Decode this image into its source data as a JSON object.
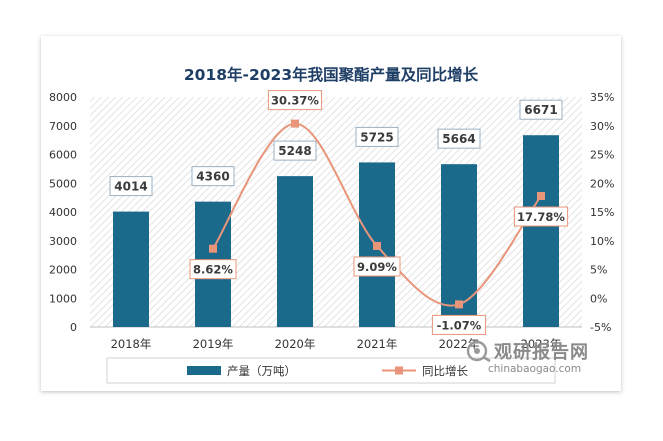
{
  "chart_data": {
    "type": "bar",
    "title": "2018年-2023年我国聚酯产量及同比增长",
    "categories": [
      "2018年",
      "2019年",
      "2020年",
      "2021年",
      "2022年",
      "2023年"
    ],
    "series": [
      {
        "name": "产量（万吨）",
        "type": "bar",
        "axis": "left",
        "values": [
          4014,
          4360,
          5248,
          5725,
          5664,
          6671
        ],
        "labels": [
          "4014",
          "4360",
          "5248",
          "5725",
          "5664",
          "6671"
        ],
        "color": "#1b6a8c"
      },
      {
        "name": "同比增长",
        "type": "line",
        "axis": "right",
        "values": [
          null,
          8.62,
          30.37,
          9.09,
          -1.07,
          17.78
        ],
        "labels": [
          "",
          "8.62%",
          "30.37%",
          "9.09%",
          "-1.07%",
          "17.78%"
        ],
        "color": "#e8957a"
      }
    ],
    "y_left": {
      "min": 0,
      "max": 8000,
      "step": 1000,
      "ticks": [
        "0",
        "1000",
        "2000",
        "3000",
        "4000",
        "5000",
        "6000",
        "7000",
        "8000"
      ]
    },
    "y_right": {
      "min": -5,
      "max": 35,
      "step": 5,
      "ticks": [
        "-5%",
        "0%",
        "5%",
        "10%",
        "15%",
        "20%",
        "25%",
        "30%",
        "35%"
      ]
    },
    "legend_position": "bottom",
    "grid": false
  },
  "watermark": {
    "name_cn": "观研报告网",
    "url": "chinabaogao.com"
  }
}
